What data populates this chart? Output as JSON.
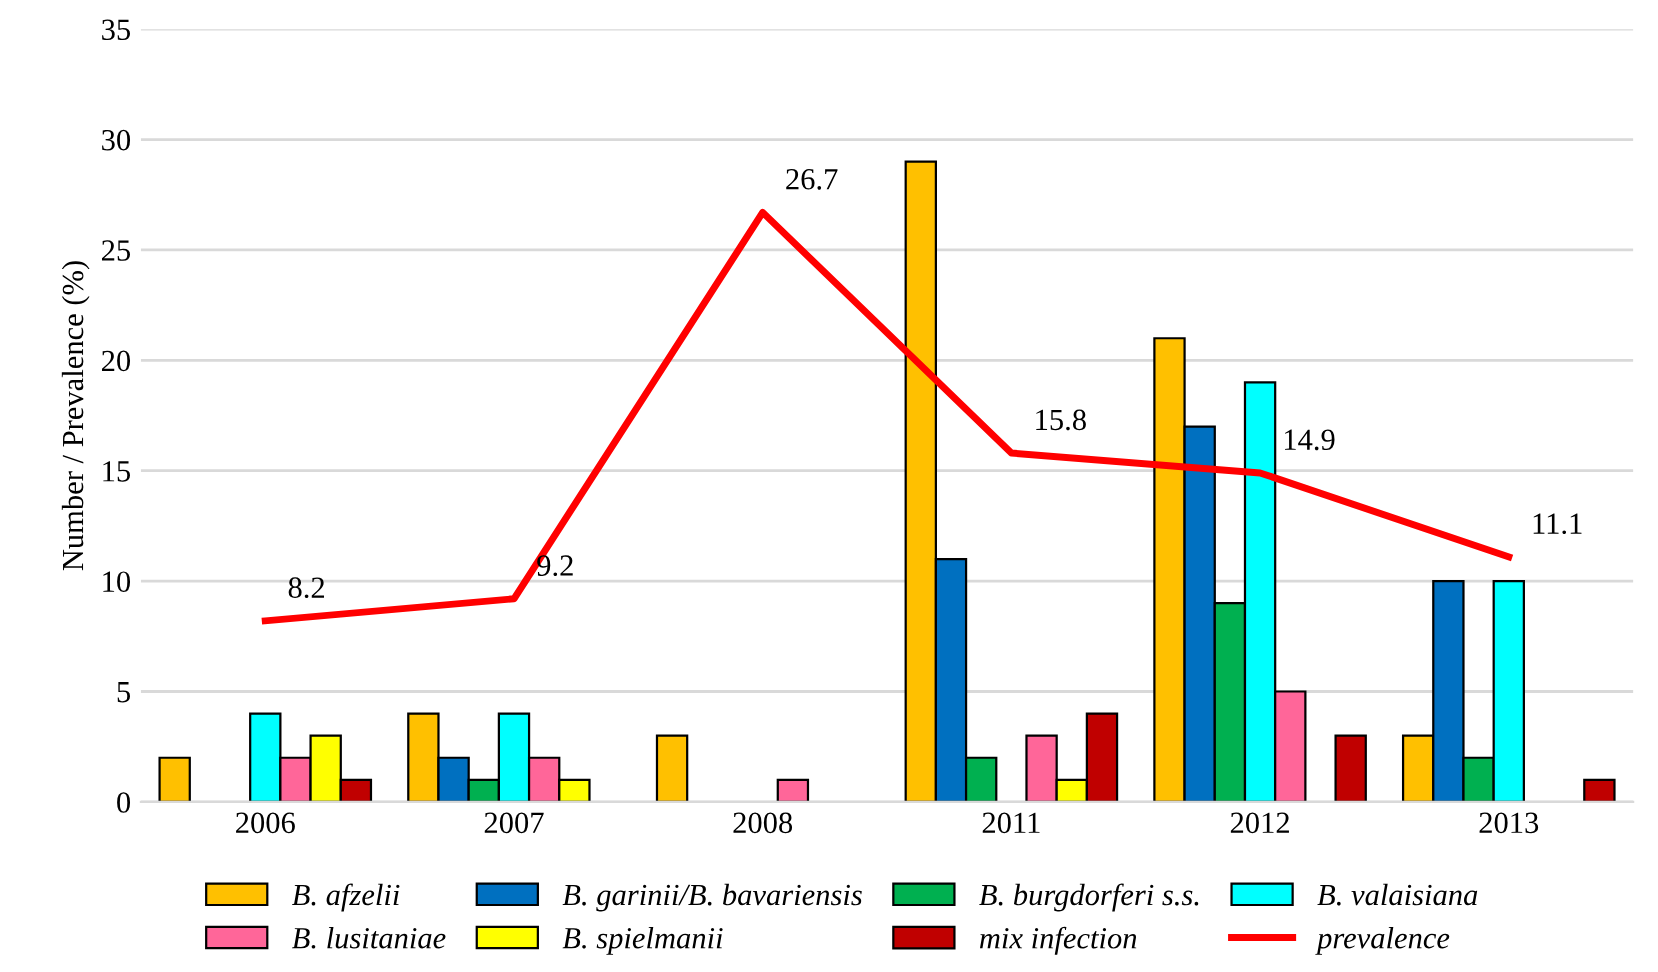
{
  "chart_data": {
    "type": "bar",
    "ylabel": "Number / Prevalence (%)",
    "categories": [
      "2006",
      "2007",
      "2008",
      "2011",
      "2012",
      "2013"
    ],
    "series": [
      {
        "name": "B. afzelii",
        "color": "#ffc000",
        "values": [
          2,
          4,
          3,
          29,
          21,
          3
        ]
      },
      {
        "name": "B. garinii/B. bavariensis",
        "color": "#0070c0",
        "values": [
          null,
          2,
          null,
          11,
          17,
          10
        ]
      },
      {
        "name": "B. burgdorferi s.s.",
        "color": "#00b050",
        "values": [
          null,
          1,
          null,
          2,
          9,
          2
        ]
      },
      {
        "name": "B. valaisiana",
        "color": "#00ffff",
        "values": [
          4,
          4,
          null,
          null,
          19,
          10
        ]
      },
      {
        "name": "B. lusitaniae",
        "color": "#ff6699",
        "values": [
          2,
          2,
          1,
          3,
          5,
          null
        ]
      },
      {
        "name": "B. spielmanii",
        "color": "#ffff00",
        "values": [
          3,
          1,
          null,
          1,
          null,
          null
        ]
      },
      {
        "name": "mix infection",
        "color": "#c00000",
        "values": [
          1,
          null,
          null,
          4,
          3,
          1
        ]
      },
      {
        "name": "prevalence",
        "type": "line",
        "color": "#ff0000",
        "values": [
          8.2,
          9.2,
          26.7,
          15.8,
          14.9,
          11.1
        ],
        "value_labels": [
          "8.2",
          "9.2",
          "26.7",
          "15.8",
          "14.9",
          "11.1"
        ]
      }
    ],
    "ylim": [
      0,
      35
    ],
    "yticks": [
      0,
      5,
      10,
      15,
      20,
      25,
      30,
      35
    ],
    "grid": "y",
    "legend": "bottom"
  }
}
